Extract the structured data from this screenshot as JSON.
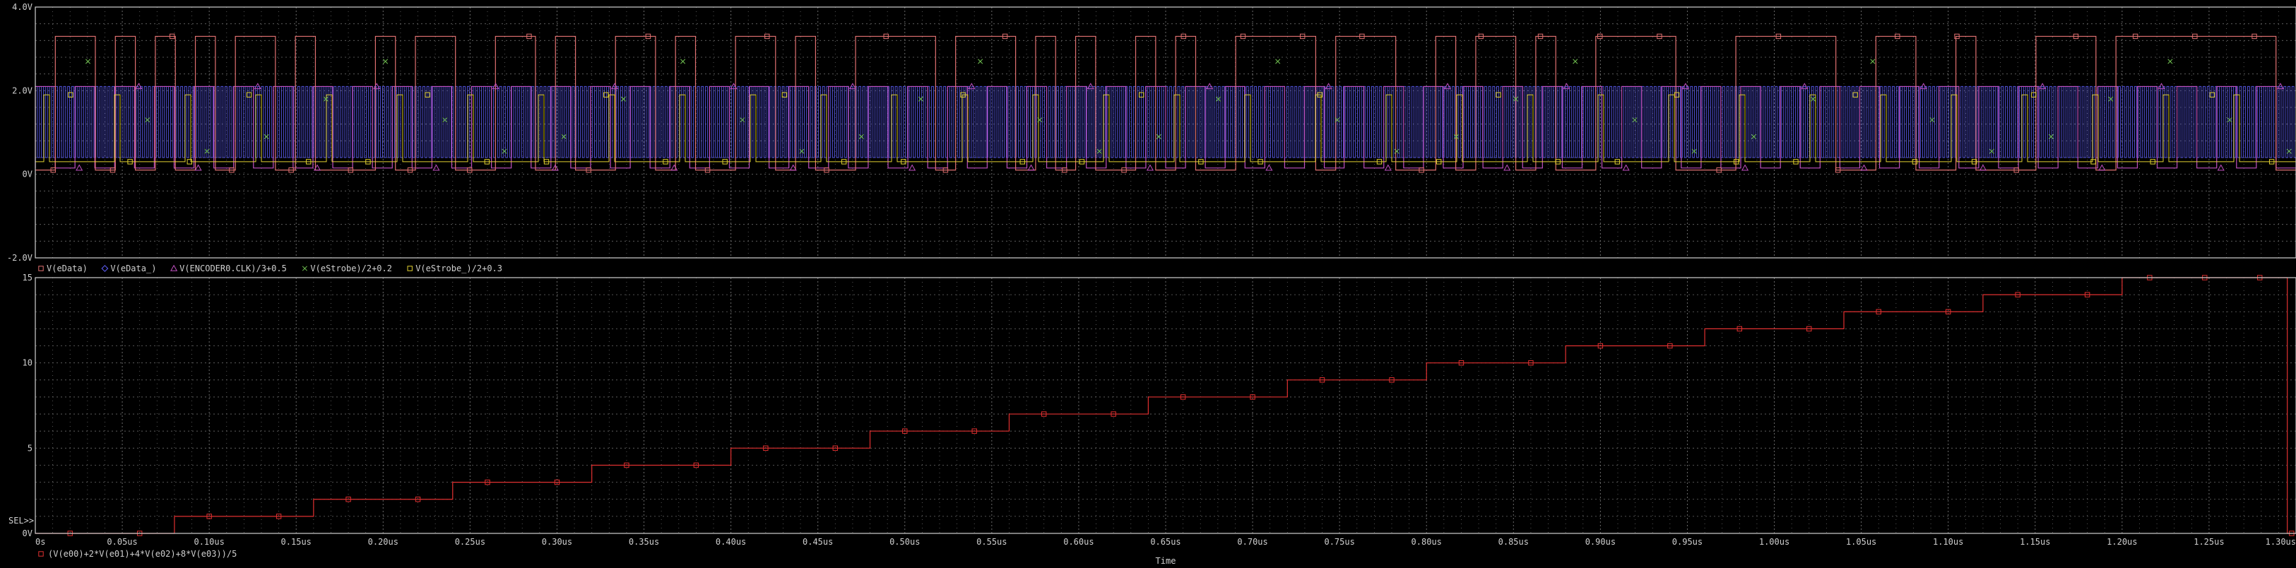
{
  "colors": {
    "background": "#000000",
    "grid": "#6a6a6a",
    "axis": "#d0d0d0",
    "eData": "#e07070",
    "eData_": "#6060ff",
    "clk": "#c050c0",
    "eStrobe": "#70c050",
    "eStrobe_": "#e0d030",
    "sum": "#e03030"
  },
  "chart_data": [
    {
      "type": "line",
      "title": "",
      "xlabel": "",
      "ylabel": "",
      "xlim": [
        0,
        1.3
      ],
      "ylim": [
        -2.0,
        4.0
      ],
      "y_ticks": [
        4.0,
        2.0,
        0,
        -2.0
      ],
      "y_tick_labels": [
        "4.0V",
        "2.0V",
        "0V",
        "-2.0V"
      ],
      "grid": true,
      "legend_position": "bottom",
      "series": [
        {
          "name": "V(eData)",
          "marker": "square",
          "color": "#e07070",
          "bits": [
            0,
            1,
            1,
            0,
            1,
            0,
            1,
            0,
            1,
            0,
            1,
            1,
            0,
            1,
            0,
            0,
            0,
            1,
            0,
            1,
            1,
            0,
            0,
            1,
            1,
            0,
            1,
            0,
            0,
            1,
            1,
            0,
            1,
            0,
            0,
            1,
            1,
            0,
            1,
            0,
            0,
            1,
            1,
            1,
            1,
            0,
            1,
            1,
            1,
            0,
            1,
            0,
            1,
            0,
            0,
            1,
            0,
            1,
            0,
            0,
            1,
            1,
            1,
            1,
            0,
            1,
            1,
            1,
            0,
            0,
            1,
            0,
            1,
            1,
            0,
            1,
            0,
            0,
            1,
            1,
            1,
            1,
            0,
            0,
            0,
            1,
            1,
            1,
            1,
            1,
            0,
            0,
            1,
            1,
            0,
            0,
            1,
            0,
            0,
            0,
            1,
            1,
            1,
            0,
            1,
            1,
            1,
            1,
            1,
            1,
            1,
            1,
            0
          ],
          "low": 0.1,
          "high": 3.3
        },
        {
          "name": "V(eData_)",
          "marker": "diamond",
          "color": "#6060ff",
          "pulse_low": 0.4,
          "pulse_high": 2.1
        },
        {
          "name": "V(ENCODER0.CLK)/3+0.5",
          "marker": "triangle",
          "color": "#c050c0",
          "low": 0.15,
          "high": 2.1
        },
        {
          "name": "V(eStrobe)/2+0.2",
          "marker": "x",
          "color": "#70c050"
        },
        {
          "name": "V(eStrobe_)/2+0.3",
          "marker": "square",
          "color": "#e0d030",
          "low": 0.3,
          "high": 1.9
        }
      ]
    },
    {
      "type": "line",
      "title": "",
      "xlabel": "Time",
      "ylabel": "",
      "xlim": [
        0,
        1.3
      ],
      "ylim": [
        0,
        15
      ],
      "y_ticks": [
        15,
        10,
        5,
        0
      ],
      "y_tick_labels": [
        "15",
        "10",
        "5",
        "0V"
      ],
      "x_ticks": [
        0,
        0.05,
        0.1,
        0.15,
        0.2,
        0.25,
        0.3,
        0.35,
        0.4,
        0.45,
        0.5,
        0.55,
        0.6,
        0.65,
        0.7,
        0.75,
        0.8,
        0.85,
        0.9,
        0.95,
        1.0,
        1.05,
        1.1,
        1.15,
        1.2,
        1.25,
        1.3
      ],
      "x_tick_labels": [
        "0s",
        "0.05us",
        "0.10us",
        "0.15us",
        "0.20us",
        "0.25us",
        "0.30us",
        "0.35us",
        "0.40us",
        "0.45us",
        "0.50us",
        "0.55us",
        "0.60us",
        "0.65us",
        "0.70us",
        "0.75us",
        "0.80us",
        "0.85us",
        "0.90us",
        "0.95us",
        "1.00us",
        "1.05us",
        "1.10us",
        "1.15us",
        "1.20us",
        "1.25us",
        "1.30us"
      ],
      "grid": true,
      "legend_position": "bottom-left",
      "series": [
        {
          "name": "(V(e00)+2*V(e01)+4*V(e02)+8*V(e03))/5",
          "marker": "square",
          "color": "#e03030",
          "steps": [
            [
              0,
              0
            ],
            [
              0.08,
              1
            ],
            [
              0.16,
              2
            ],
            [
              0.24,
              3
            ],
            [
              0.32,
              4
            ],
            [
              0.4,
              5
            ],
            [
              0.48,
              6
            ],
            [
              0.56,
              7
            ],
            [
              0.64,
              8
            ],
            [
              0.72,
              9
            ],
            [
              0.8,
              10
            ],
            [
              0.88,
              11
            ],
            [
              0.96,
              12
            ],
            [
              1.04,
              13
            ],
            [
              1.12,
              14
            ],
            [
              1.2,
              15
            ],
            [
              1.295,
              0
            ]
          ]
        }
      ]
    }
  ],
  "sel_label": "SEL>>"
}
